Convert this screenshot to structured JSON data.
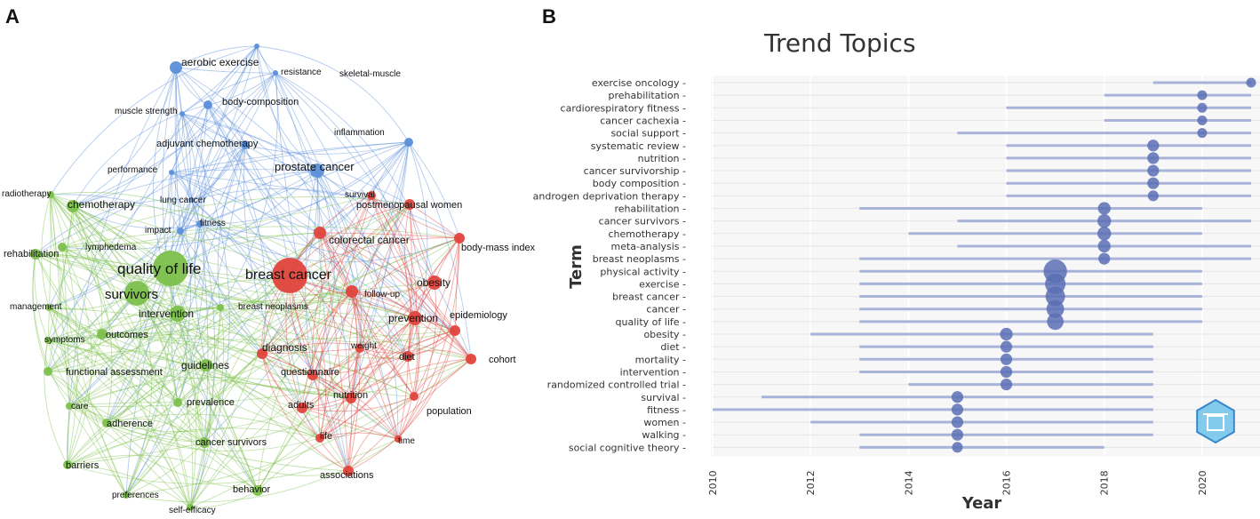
{
  "panels": {
    "a": "A",
    "b": "B"
  },
  "network": {
    "colors": {
      "blue": "#5b8fd9",
      "green": "#7cc04b",
      "red": "#e0443c"
    },
    "nodes": [
      {
        "id": "aerobic exercise",
        "c": "blue",
        "s": 7
      },
      {
        "id": "resistance",
        "c": "blue",
        "s": 3
      },
      {
        "id": "skeletal-muscle",
        "c": "blue",
        "s": 3
      },
      {
        "id": "muscle strength",
        "c": "blue",
        "s": 3
      },
      {
        "id": "body-composition",
        "c": "blue",
        "s": 5
      },
      {
        "id": "inflammation",
        "c": "blue",
        "s": 5
      },
      {
        "id": "adjuvant chemotherapy",
        "c": "blue",
        "s": 5
      },
      {
        "id": "performance",
        "c": "blue",
        "s": 3
      },
      {
        "id": "prostate cancer",
        "c": "blue",
        "s": 8
      },
      {
        "id": "lung cancer",
        "c": "blue",
        "s": 3
      },
      {
        "id": "fitness",
        "c": "blue",
        "s": 4
      },
      {
        "id": "impact",
        "c": "blue",
        "s": 4
      },
      {
        "id": "radiotherapy",
        "c": "green",
        "s": 4
      },
      {
        "id": "chemotherapy",
        "c": "green",
        "s": 7
      },
      {
        "id": "lymphedema",
        "c": "green",
        "s": 5
      },
      {
        "id": "rehabilitation",
        "c": "green",
        "s": 6
      },
      {
        "id": "quality of life",
        "c": "green",
        "s": 20
      },
      {
        "id": "survivors",
        "c": "green",
        "s": 14
      },
      {
        "id": "intervention",
        "c": "green",
        "s": 9
      },
      {
        "id": "management",
        "c": "green",
        "s": 4
      },
      {
        "id": "symptoms",
        "c": "green",
        "s": 4
      },
      {
        "id": "outcomes",
        "c": "green",
        "s": 6
      },
      {
        "id": "functional assessment",
        "c": "green",
        "s": 5
      },
      {
        "id": "guidelines",
        "c": "green",
        "s": 7
      },
      {
        "id": "prevalence",
        "c": "green",
        "s": 5
      },
      {
        "id": "care",
        "c": "green",
        "s": 4
      },
      {
        "id": "adherence",
        "c": "green",
        "s": 5
      },
      {
        "id": "cancer survivors",
        "c": "green",
        "s": 6
      },
      {
        "id": "barriers",
        "c": "green",
        "s": 5
      },
      {
        "id": "preferences",
        "c": "green",
        "s": 4
      },
      {
        "id": "self-efficacy",
        "c": "green",
        "s": 4
      },
      {
        "id": "behavior",
        "c": "green",
        "s": 6
      },
      {
        "id": "breast neoplasms",
        "c": "green",
        "s": 4
      },
      {
        "id": "breast cancer",
        "c": "red",
        "s": 20
      },
      {
        "id": "survival",
        "c": "red",
        "s": 5
      },
      {
        "id": "postmenopausal women",
        "c": "red",
        "s": 6
      },
      {
        "id": "colorectal cancer",
        "c": "red",
        "s": 7
      },
      {
        "id": "body-mass index",
        "c": "red",
        "s": 6
      },
      {
        "id": "follow-up",
        "c": "red",
        "s": 7
      },
      {
        "id": "obesity",
        "c": "red",
        "s": 8
      },
      {
        "id": "prevention",
        "c": "red",
        "s": 8
      },
      {
        "id": "epidemiology",
        "c": "red",
        "s": 6
      },
      {
        "id": "diagnosis",
        "c": "red",
        "s": 6
      },
      {
        "id": "weight",
        "c": "red",
        "s": 5
      },
      {
        "id": "diet",
        "c": "red",
        "s": 6
      },
      {
        "id": "cohort",
        "c": "red",
        "s": 6
      },
      {
        "id": "questionnaire",
        "c": "red",
        "s": 6
      },
      {
        "id": "nutrition",
        "c": "red",
        "s": 6
      },
      {
        "id": "adults",
        "c": "red",
        "s": 6
      },
      {
        "id": "population",
        "c": "red",
        "s": 5
      },
      {
        "id": "life",
        "c": "red",
        "s": 5
      },
      {
        "id": "time",
        "c": "red",
        "s": 4
      },
      {
        "id": "associations",
        "c": "red",
        "s": 6
      }
    ]
  },
  "chart_data": {
    "type": "scatter",
    "title": "Trend Topics",
    "xlabel": "Year",
    "ylabel": "Term",
    "xlim": [
      2010,
      2021
    ],
    "x_ticks": [
      "2010",
      "2012",
      "2014",
      "2016",
      "2018",
      "2020"
    ],
    "grid": true,
    "watermark": "bibliometrix logo",
    "terms": [
      {
        "term": "exercise oncology",
        "start": 2019,
        "end": 2021,
        "peak": 2021,
        "size": 1
      },
      {
        "term": "prehabilitation",
        "start": 2018,
        "end": 2021,
        "peak": 2020,
        "size": 1
      },
      {
        "term": "cardiorespiratory fitness",
        "start": 2016,
        "end": 2021,
        "peak": 2020,
        "size": 1
      },
      {
        "term": "cancer cachexia",
        "start": 2018,
        "end": 2021,
        "peak": 2020,
        "size": 1
      },
      {
        "term": "social support",
        "start": 2015,
        "end": 2021,
        "peak": 2020,
        "size": 1
      },
      {
        "term": "systematic review",
        "start": 2016,
        "end": 2021,
        "peak": 2019,
        "size": 1.2
      },
      {
        "term": "nutrition",
        "start": 2016,
        "end": 2021,
        "peak": 2019,
        "size": 1.2
      },
      {
        "term": "cancer survivorship",
        "start": 2016,
        "end": 2021,
        "peak": 2019,
        "size": 1.2
      },
      {
        "term": "body composition",
        "start": 2016,
        "end": 2021,
        "peak": 2019,
        "size": 1.2
      },
      {
        "term": "androgen deprivation therapy",
        "start": 2016,
        "end": 2021,
        "peak": 2019,
        "size": 1.1
      },
      {
        "term": "rehabilitation",
        "start": 2013,
        "end": 2020,
        "peak": 2018,
        "size": 1.3
      },
      {
        "term": "cancer survivors",
        "start": 2015,
        "end": 2021,
        "peak": 2018,
        "size": 1.4
      },
      {
        "term": "chemotherapy",
        "start": 2014,
        "end": 2020,
        "peak": 2018,
        "size": 1.4
      },
      {
        "term": "meta-analysis",
        "start": 2015,
        "end": 2021,
        "peak": 2018,
        "size": 1.3
      },
      {
        "term": "breast neoplasms",
        "start": 2013,
        "end": 2021,
        "peak": 2018,
        "size": 1.2
      },
      {
        "term": "physical activity",
        "start": 2013,
        "end": 2020,
        "peak": 2017,
        "size": 2.4
      },
      {
        "term": "exercise",
        "start": 2013,
        "end": 2020,
        "peak": 2017,
        "size": 2.1
      },
      {
        "term": "breast cancer",
        "start": 2013,
        "end": 2020,
        "peak": 2017,
        "size": 2.0
      },
      {
        "term": "cancer",
        "start": 2013,
        "end": 2020,
        "peak": 2017,
        "size": 1.8
      },
      {
        "term": "quality of life",
        "start": 2013,
        "end": 2020,
        "peak": 2017,
        "size": 1.7
      },
      {
        "term": "obesity",
        "start": 2012,
        "end": 2019,
        "peak": 2016,
        "size": 1.3
      },
      {
        "term": "diet",
        "start": 2013,
        "end": 2019,
        "peak": 2016,
        "size": 1.2
      },
      {
        "term": "mortality",
        "start": 2013,
        "end": 2019,
        "peak": 2016,
        "size": 1.2
      },
      {
        "term": "intervention",
        "start": 2013,
        "end": 2019,
        "peak": 2016,
        "size": 1.2
      },
      {
        "term": "randomized controlled trial",
        "start": 2014,
        "end": 2019,
        "peak": 2016,
        "size": 1.2
      },
      {
        "term": "survival",
        "start": 2011,
        "end": 2019,
        "peak": 2015,
        "size": 1.2
      },
      {
        "term": "fitness",
        "start": 2010,
        "end": 2019,
        "peak": 2015,
        "size": 1.2
      },
      {
        "term": "women",
        "start": 2012,
        "end": 2019,
        "peak": 2015,
        "size": 1.2
      },
      {
        "term": "walking",
        "start": 2013,
        "end": 2019,
        "peak": 2015,
        "size": 1.2
      },
      {
        "term": "social cognitive theory",
        "start": 2013,
        "end": 2018,
        "peak": 2015,
        "size": 1.1
      }
    ]
  }
}
